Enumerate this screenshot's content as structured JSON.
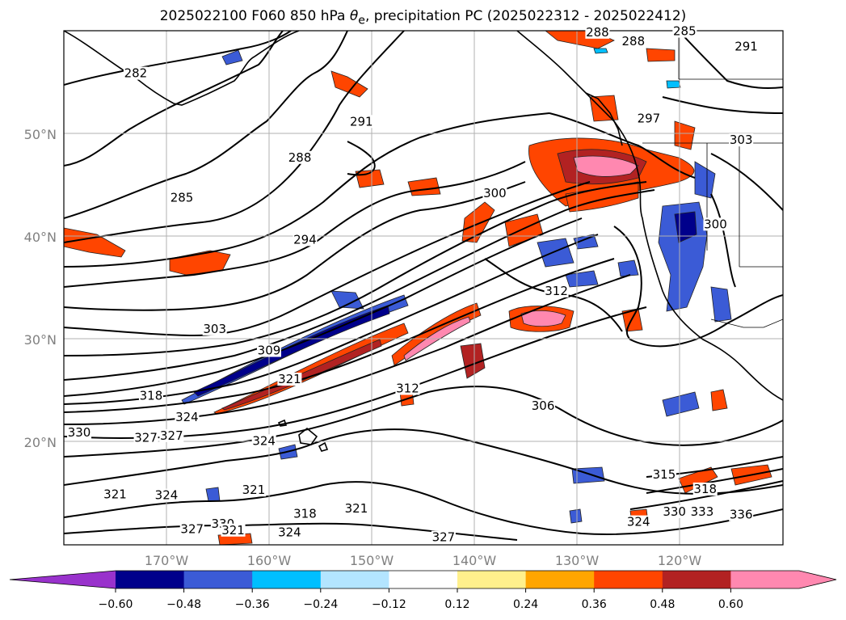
{
  "title": {
    "prefix": "2025022100 F060 850 hPa ",
    "theta_symbol": "θ",
    "theta_sub": "e",
    "suffix": ", precipitation PC (2025022312 - 2025022412)"
  },
  "map": {
    "lat_ticks": [
      {
        "value": 50,
        "label": "50°N"
      },
      {
        "value": 40,
        "label": "40°N"
      },
      {
        "value": 30,
        "label": "30°N"
      },
      {
        "value": 20,
        "label": "20°N"
      }
    ],
    "lon_ticks": [
      {
        "value": -170,
        "label": "170°W"
      },
      {
        "value": -160,
        "label": "160°W"
      },
      {
        "value": -150,
        "label": "150°W"
      },
      {
        "value": -140,
        "label": "140°W"
      },
      {
        "value": -130,
        "label": "130°W"
      },
      {
        "value": -120,
        "label": "120°W"
      }
    ],
    "contour_labels": [
      {
        "text": "282",
        "lon": -173,
        "lat": 55.7
      },
      {
        "text": "285",
        "lon": -168.5,
        "lat": 43.6
      },
      {
        "text": "288",
        "lon": -157,
        "lat": 47.5
      },
      {
        "text": "291",
        "lon": -151,
        "lat": 51.0
      },
      {
        "text": "294",
        "lon": -156.5,
        "lat": 39.5
      },
      {
        "text": "300",
        "lon": -138,
        "lat": 44.0
      },
      {
        "text": "297",
        "lon": -123,
        "lat": 51.3
      },
      {
        "text": "303",
        "lon": -165.3,
        "lat": 30.8
      },
      {
        "text": "309",
        "lon": -160,
        "lat": 28.7
      },
      {
        "text": "312",
        "lon": -132,
        "lat": 34.5
      },
      {
        "text": "312",
        "lon": -146.5,
        "lat": 25.0
      },
      {
        "text": "318",
        "lon": -171.5,
        "lat": 24.3
      },
      {
        "text": "321",
        "lon": -158,
        "lat": 25.9
      },
      {
        "text": "324",
        "lon": -168,
        "lat": 22.2
      },
      {
        "text": "324",
        "lon": -160.5,
        "lat": 19.9
      },
      {
        "text": "306",
        "lon": -133.3,
        "lat": 23.3
      },
      {
        "text": "300",
        "lon": -116.5,
        "lat": 41.0
      },
      {
        "text": "315",
        "lon": -121.5,
        "lat": 16.6
      },
      {
        "text": "318",
        "lon": -117.5,
        "lat": 15.2
      },
      {
        "text": "324",
        "lon": -124,
        "lat": 12.0
      },
      {
        "text": "330",
        "lon": -120.5,
        "lat": 13.0
      },
      {
        "text": "333",
        "lon": -117.8,
        "lat": 13.0
      },
      {
        "text": "336",
        "lon": -114,
        "lat": 12.7
      },
      {
        "text": "321",
        "lon": -175,
        "lat": 14.7
      },
      {
        "text": "324",
        "lon": -170,
        "lat": 14.6
      },
      {
        "text": "321",
        "lon": -161.5,
        "lat": 15.1
      },
      {
        "text": "318",
        "lon": -156.5,
        "lat": 12.8
      },
      {
        "text": "321",
        "lon": -151.5,
        "lat": 13.3
      },
      {
        "text": "327",
        "lon": -167.5,
        "lat": 11.3
      },
      {
        "text": "330",
        "lon": -164.5,
        "lat": 11.8
      },
      {
        "text": "321",
        "lon": -163.5,
        "lat": 11.2
      },
      {
        "text": "324",
        "lon": -158,
        "lat": 11.0
      },
      {
        "text": "327",
        "lon": -143,
        "lat": 10.5
      },
      {
        "text": "327",
        "lon": -172,
        "lat": 20.2
      },
      {
        "text": "327",
        "lon": -169.5,
        "lat": 20.4
      },
      {
        "text": "330",
        "lon": -178.5,
        "lat": 20.7
      },
      {
        "text": "291",
        "lon": -113.5,
        "lat": 58.3
      },
      {
        "text": "285",
        "lon": -119.5,
        "lat": 59.8
      },
      {
        "text": "288",
        "lon": -128,
        "lat": 59.7
      },
      {
        "text": "288",
        "lon": -124.5,
        "lat": 58.8
      },
      {
        "text": "303",
        "lon": -114,
        "lat": 49.2
      }
    ]
  },
  "colorbar": {
    "ticks": [
      "−0.60",
      "−0.48",
      "−0.36",
      "−0.24",
      "−0.12",
      "0.12",
      "0.24",
      "0.36",
      "0.48",
      "0.60"
    ],
    "colors": {
      "under": "#9932cc",
      "bins": [
        "#00008b",
        "#3b5bd6",
        "#00bfff",
        "#b3e5ff",
        "#ffffff",
        "#fff08c",
        "#ffa500",
        "#ff4500",
        "#b22222",
        "#ff88b0"
      ],
      "over": "#ff88b0"
    }
  }
}
